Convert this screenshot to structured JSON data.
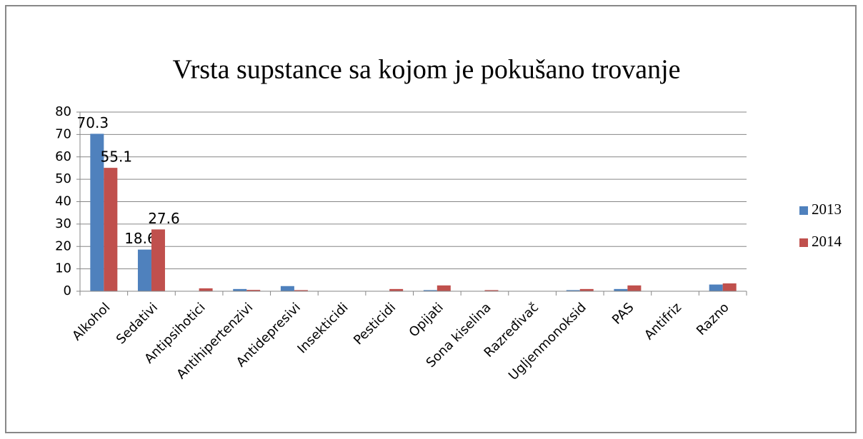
{
  "chart_data": {
    "type": "bar",
    "title": "Vrsta supstance sa kojom je pokušano trovanje",
    "categories": [
      "Alkohol",
      "Sedativi",
      "Antipsihotici",
      "Antihipertenzivi",
      "Antidepresivi",
      "Insekticidi",
      "Pesticidi",
      "Opijati",
      "Sona kiselina",
      "Razređivač",
      "Ugljenmonoksid",
      "PAS",
      "Antifriz",
      "Razno"
    ],
    "series": [
      {
        "name": "2013",
        "color": "#4f81bd",
        "values": [
          70.3,
          18.6,
          0,
          1.0,
          2.3,
          0,
          0,
          0.5,
          0,
          0,
          0.5,
          1.0,
          0,
          3.0
        ],
        "value_labels": [
          "70.3",
          "18.6",
          null,
          null,
          null,
          null,
          null,
          null,
          null,
          null,
          null,
          null,
          null,
          null
        ]
      },
      {
        "name": "2014",
        "color": "#c0504d",
        "values": [
          55.1,
          27.6,
          1.3,
          0.6,
          0.5,
          0,
          1.0,
          2.6,
          0.5,
          0,
          1.0,
          2.6,
          0,
          3.5
        ],
        "value_labels": [
          "55.1",
          "27.6",
          null,
          null,
          null,
          null,
          null,
          null,
          null,
          null,
          null,
          null,
          null,
          null
        ]
      }
    ],
    "ylim": [
      0,
      80
    ],
    "yticks": [
      0,
      10,
      20,
      30,
      40,
      50,
      60,
      70,
      80
    ],
    "grid": true,
    "legend": "right"
  }
}
